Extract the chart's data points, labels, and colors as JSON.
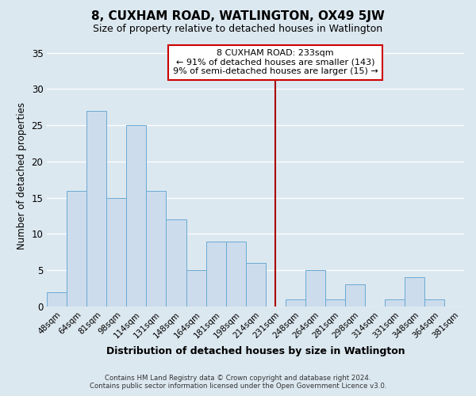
{
  "title": "8, CUXHAM ROAD, WATLINGTON, OX49 5JW",
  "subtitle": "Size of property relative to detached houses in Watlington",
  "xlabel": "Distribution of detached houses by size in Watlington",
  "ylabel": "Number of detached properties",
  "footer_line1": "Contains HM Land Registry data © Crown copyright and database right 2024.",
  "footer_line2": "Contains public sector information licensed under the Open Government Licence v3.0.",
  "bin_labels": [
    "48sqm",
    "64sqm",
    "81sqm",
    "98sqm",
    "114sqm",
    "131sqm",
    "148sqm",
    "164sqm",
    "181sqm",
    "198sqm",
    "214sqm",
    "231sqm",
    "248sqm",
    "264sqm",
    "281sqm",
    "298sqm",
    "314sqm",
    "331sqm",
    "348sqm",
    "364sqm",
    "381sqm"
  ],
  "bar_heights": [
    2,
    16,
    27,
    15,
    25,
    16,
    12,
    5,
    9,
    9,
    6,
    0,
    1,
    5,
    1,
    3,
    0,
    1,
    4,
    1,
    0
  ],
  "bar_color": "#ccdcec",
  "bar_edge_color": "#6aaad4",
  "vline_x_idx": 11,
  "vline_color": "#aa0000",
  "annotation_title": "8 CUXHAM ROAD: 233sqm",
  "annotation_line1": "← 91% of detached houses are smaller (143)",
  "annotation_line2": "9% of semi-detached houses are larger (15) →",
  "annotation_box_color": "white",
  "annotation_box_edge": "#cc0000",
  "ylim": [
    0,
    36
  ],
  "yticks": [
    0,
    5,
    10,
    15,
    20,
    25,
    30,
    35
  ],
  "background_color": "#dce8f0",
  "plot_bg_color": "#dce8f0",
  "grid_color": "#ffffff",
  "title_fontsize": 11,
  "subtitle_fontsize": 9
}
